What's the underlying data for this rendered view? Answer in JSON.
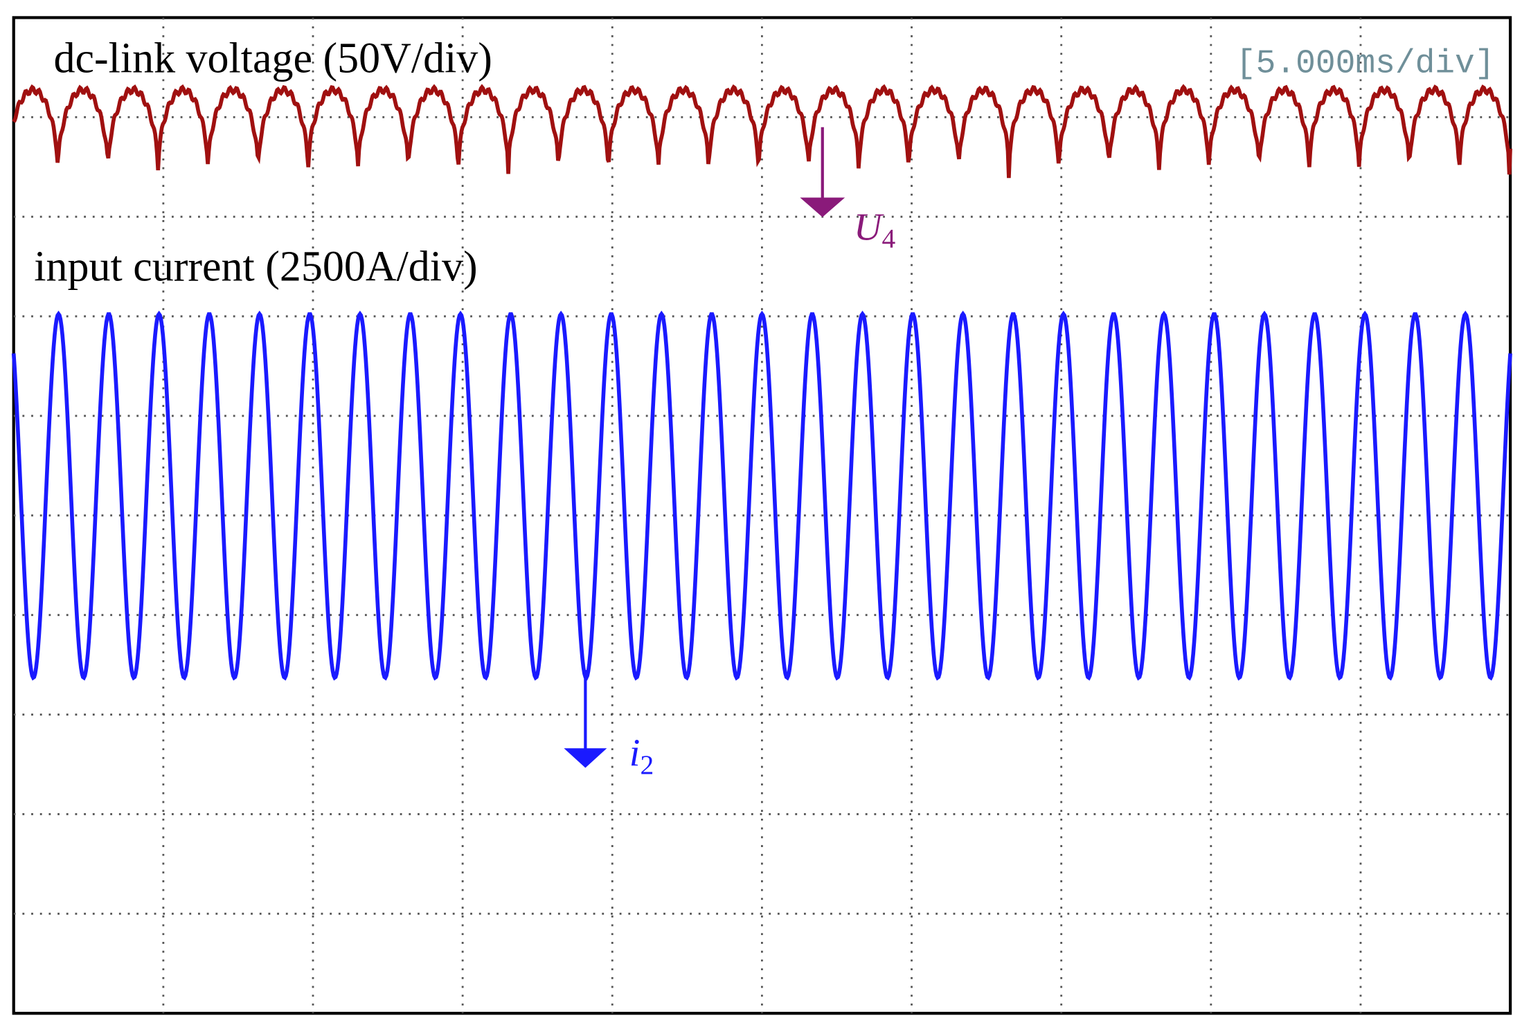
{
  "labels": {
    "voltage": "dc-link voltage (50V/div)",
    "current": "input current (2500A/div)",
    "timebase": "[5.000ms/div]"
  },
  "markers": [
    {
      "symbol": "U",
      "subscript": "4"
    },
    {
      "symbol": "i",
      "subscript": "2"
    }
  ]
}
